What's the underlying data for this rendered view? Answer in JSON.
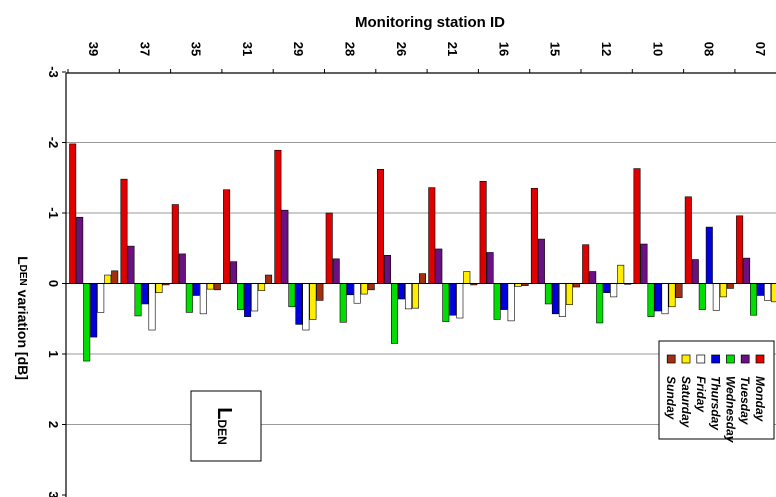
{
  "chart_data": {
    "type": "bar",
    "title": "Monitoring station ID",
    "ylabel_main": "L",
    "ylabel_sub": "DEN",
    "ylabel_rest": " variation  [dB]",
    "box_label_main": "L",
    "box_label_sub": "DEN",
    "categories": [
      "39",
      "37",
      "35",
      "31",
      "29",
      "28",
      "26",
      "21",
      "16",
      "15",
      "12",
      "10",
      "08",
      "07"
    ],
    "ylim": [
      -3,
      3
    ],
    "yticks": [
      "-3",
      "-2",
      "-1",
      "0",
      "1",
      "2",
      "3"
    ],
    "grid": true,
    "legend_position": "bottom-right",
    "series": [
      {
        "name": "Monday",
        "color": "#e00000",
        "values": [
          -1.98,
          -1.48,
          -1.12,
          -1.33,
          -1.89,
          -1.0,
          -1.62,
          -1.36,
          -1.45,
          -1.35,
          -0.55,
          -1.63,
          -1.23,
          -0.96
        ]
      },
      {
        "name": "Tuesday",
        "color": "#6a1080",
        "values": [
          -0.94,
          -0.53,
          -0.42,
          -0.31,
          -1.04,
          -0.35,
          -0.4,
          -0.49,
          -0.44,
          -0.63,
          -0.17,
          -0.56,
          -0.34,
          -0.36
        ]
      },
      {
        "name": "Wednesday",
        "color": "#00dd00",
        "values": [
          1.1,
          0.46,
          0.41,
          0.37,
          0.33,
          0.55,
          0.85,
          0.54,
          0.51,
          0.29,
          0.56,
          0.47,
          0.37,
          0.45
        ]
      },
      {
        "name": "Thursday",
        "color": "#0000dd",
        "values": [
          0.76,
          0.29,
          0.17,
          0.47,
          0.58,
          0.16,
          0.22,
          0.45,
          0.37,
          0.43,
          0.13,
          0.39,
          -0.8,
          0.17
        ]
      },
      {
        "name": "Friday",
        "color": "#ffffff",
        "values": [
          0.41,
          0.66,
          0.43,
          0.39,
          0.66,
          0.28,
          0.36,
          0.49,
          0.53,
          0.47,
          0.19,
          0.43,
          0.38,
          0.24
        ]
      },
      {
        "name": "Saturday",
        "color": "#ffee00",
        "values": [
          -0.12,
          0.13,
          0.08,
          0.1,
          0.51,
          0.15,
          0.35,
          -0.17,
          0.04,
          0.3,
          -0.26,
          0.33,
          0.19,
          0.26
        ]
      },
      {
        "name": "Sunday",
        "color": "#a03010",
        "values": [
          -0.18,
          0.02,
          0.09,
          -0.12,
          0.24,
          0.09,
          -0.14,
          0.02,
          0.03,
          0.05,
          0.01,
          0.2,
          0.07,
          0.02
        ]
      }
    ]
  }
}
